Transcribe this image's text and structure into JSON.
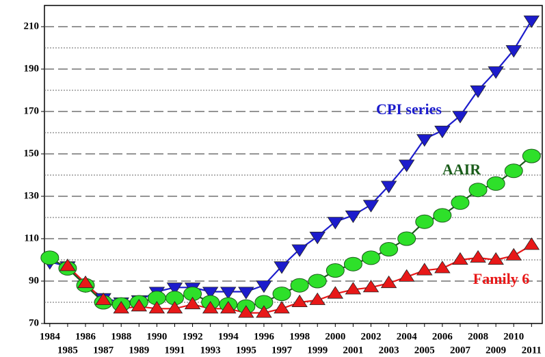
{
  "chart_data": {
    "type": "line",
    "x": [
      1984,
      1985,
      1986,
      1987,
      1988,
      1989,
      1990,
      1991,
      1992,
      1993,
      1994,
      1995,
      1996,
      1997,
      1998,
      1999,
      2000,
      2001,
      2002,
      2003,
      2004,
      2005,
      2006,
      2007,
      2008,
      2009,
      2010,
      2011
    ],
    "series": [
      {
        "name": "CPI series",
        "color": "#1c1ccc",
        "marker": "triangle-down",
        "values": [
          99,
          97,
          88,
          82,
          80,
          81,
          85,
          87,
          87,
          85,
          85,
          85,
          88,
          97,
          105,
          111,
          118,
          121,
          126,
          135,
          145,
          157,
          161,
          168,
          180,
          189,
          199,
          213
        ]
      },
      {
        "name": "AAIR",
        "color": "#2ee02a",
        "marker": "circle",
        "values": [
          101,
          96,
          88,
          80,
          79,
          80,
          82,
          82,
          84,
          80,
          79,
          78,
          80,
          84,
          88,
          90,
          95,
          98,
          101,
          105,
          110,
          118,
          121,
          127,
          133,
          136,
          142,
          149
        ]
      },
      {
        "name": "Family 6",
        "color": "#e81818",
        "marker": "triangle-up",
        "values": [
          null,
          97,
          89,
          81,
          77,
          78,
          77,
          77,
          79,
          77,
          77,
          75,
          75,
          77,
          80,
          81,
          84,
          86,
          87,
          89,
          92,
          95,
          96,
          100,
          101,
          100,
          102,
          107
        ]
      }
    ],
    "xlim": [
      1983.7,
      2011.6
    ],
    "xticks": [
      1984,
      1985,
      1986,
      1987,
      1988,
      1989,
      1990,
      1991,
      1992,
      1993,
      1994,
      1995,
      1996,
      1997,
      1998,
      1999,
      2000,
      2001,
      2002,
      2003,
      2004,
      2005,
      2006,
      2007,
      2008,
      2009,
      2010,
      2011
    ],
    "ylim": [
      70,
      220
    ],
    "yticks": [
      70,
      90,
      110,
      130,
      150,
      170,
      190,
      210
    ],
    "y_minor_ticks": [
      80,
      100,
      120,
      140,
      160,
      180,
      200
    ],
    "grid": true
  }
}
